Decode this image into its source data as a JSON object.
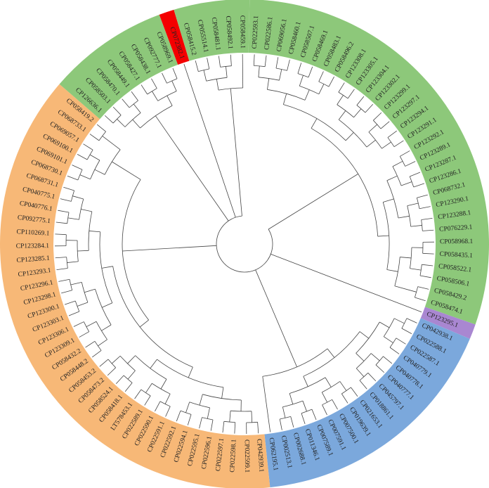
{
  "colors": {
    "green": "#8dc87a",
    "orange": "#f7b877",
    "blue": "#7ba8dc",
    "purple": "#a987d1",
    "red": "#f40000"
  },
  "clades": [
    {
      "name": "A",
      "color": "green",
      "leaves": [
        "CP022593.1",
        "CP022586.1",
        "CP069056.1",
        "CP058460.1",
        "CP058507.1",
        "CP058469.1",
        "CP058483.1",
        "CP058496.2",
        "CP123308.1",
        "CP123305.1",
        "CP123304.1",
        "CP123302.1",
        "CP123299.1",
        "CP123297.1",
        "CP123294.1",
        "CP123291.1",
        "CP123292.1",
        "CP123289.1",
        "CP123287.1",
        "CP123286.1",
        "CP068732.1",
        "CP123290.1",
        "CP123288.1",
        "CP076229.1",
        "CP058968.1",
        "CP058435.1",
        "CP058522.1",
        "CP058506.1",
        "CP058429.2",
        "CP058474.1"
      ]
    },
    {
      "name": "B",
      "color": "purple",
      "leaves": [
        "CP123295.1"
      ]
    },
    {
      "name": "C",
      "color": "blue",
      "leaves": [
        "CP042938.1",
        "CP022588.1",
        "CP022587.1",
        "CP040779.1",
        "CP040778.1",
        "CP040777.1",
        "CP045797.1",
        "CP018861.1",
        "CP021653.1",
        "CP019639.1",
        "CP007500.1",
        "CP007591.1",
        "CP007589.1",
        "CP011346.1",
        "CP002688.1",
        "CP002513.1",
        "CP062195.1"
      ]
    },
    {
      "name": "D",
      "color": "orange",
      "leaves": [
        "CP042939.1",
        "CP022599.1",
        "CP022598.1",
        "CP022597.1",
        "CP022596.1",
        "CP022595.1",
        "CP022594.1",
        "CP022592.1",
        "CP022591.1",
        "CP022590.1",
        "CP022589.1",
        "LT578453.1",
        "CP058418.1",
        "CP058524.1",
        "CP058473.2",
        "CP058453.2",
        "CP058448.2",
        "CP058432.2",
        "CP123309.1",
        "CP123306.1",
        "CP123303.1",
        "CP123300.1",
        "CP123298.1",
        "CP123296.1",
        "CP123293.1",
        "CP123285.1",
        "CP123284.1",
        "CP110269.1",
        "CP092775.1",
        "CP040776.1",
        "CP040775.1",
        "CP068731.1",
        "CP068730.1",
        "CP069101.1",
        "CP069100.1",
        "CP069057.1",
        "CP068733.1",
        "CP058419.2"
      ]
    },
    {
      "name": "E",
      "color": "green",
      "leaves": [
        "CP126636.1",
        "CP058503.1",
        "CP058470.1",
        "CP058449.1",
        "CP058427.1",
        "CP058438.1",
        "CP092777.1",
        "CP058969.1"
      ]
    },
    {
      "name": "F",
      "color": "red",
      "leaves": [
        "CP072382.1"
      ]
    },
    {
      "name": "G",
      "color": "green",
      "leaves": [
        "CP058415.2",
        "CP055514.1",
        "CP058481.1",
        "CP058492.1",
        "CP058459.1"
      ]
    }
  ]
}
